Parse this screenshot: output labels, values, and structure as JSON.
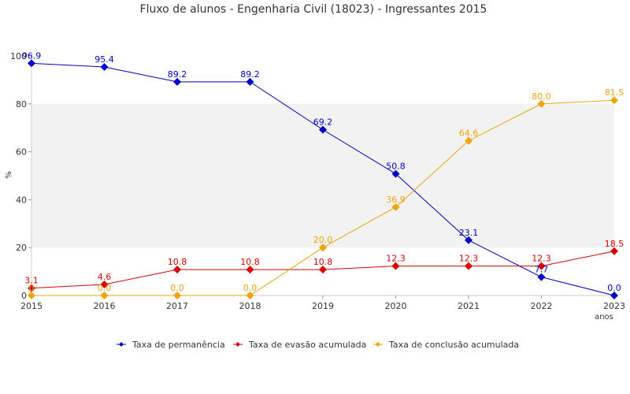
{
  "chart_data": {
    "type": "line",
    "title": "Fluxo de alunos - Engenharia Civil (18023) - Ingressantes 2015",
    "xlabel": "anos",
    "ylabel": "%",
    "x": [
      2015,
      2016,
      2017,
      2018,
      2019,
      2020,
      2021,
      2022,
      2023
    ],
    "ylim": [
      0,
      100
    ],
    "yticks": [
      0,
      20,
      40,
      60,
      80,
      100
    ],
    "grid": "alternating horizontal bands",
    "legend_position": "bottom",
    "series": [
      {
        "name": "Taxa de permanência",
        "color": "#0000cc",
        "values": [
          96.9,
          95.4,
          89.2,
          89.2,
          69.2,
          50.8,
          23.1,
          7.7,
          0.0
        ],
        "labels": [
          "96.9",
          "95.4",
          "89.2",
          "89.2",
          "69.2",
          "50.8",
          "23.1",
          "7.7",
          "0.0"
        ]
      },
      {
        "name": "Taxa de evasão acumulada",
        "color": "#dd0000",
        "values": [
          3.1,
          4.6,
          10.8,
          10.8,
          10.8,
          12.3,
          12.3,
          12.3,
          18.5
        ],
        "labels": [
          "3.1",
          "4.6",
          "10.8",
          "10.8",
          "10.8",
          "12.3",
          "12.3",
          "12.3",
          "18.5"
        ]
      },
      {
        "name": "Taxa de conclusão acumulada",
        "color": "#f0a30a",
        "values": [
          0,
          0.0,
          0.0,
          0.0,
          20.0,
          36.9,
          64.6,
          80.0,
          81.5
        ],
        "labels": [
          "0",
          "0.0",
          "0.0",
          "0.0",
          "20.0",
          "36.9",
          "64.6",
          "80.0",
          "81.5"
        ]
      }
    ]
  }
}
